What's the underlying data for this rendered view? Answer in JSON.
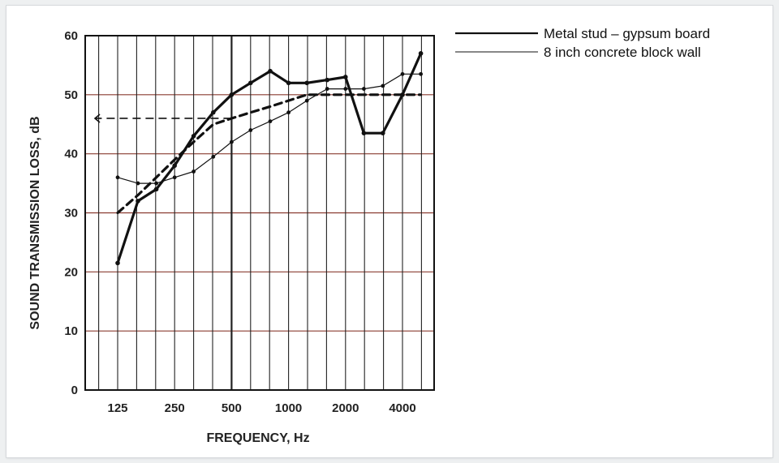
{
  "chart_data": {
    "type": "line",
    "xlabel": "FREQUENCY, Hz",
    "ylabel": "SOUND TRANSMISSION LOSS, dB",
    "x_tick_labels": [
      "125",
      "250",
      "500",
      "1000",
      "2000",
      "4000"
    ],
    "y_ticks": [
      0,
      10,
      20,
      30,
      40,
      50,
      60
    ],
    "ylim": [
      0,
      60
    ],
    "x_scale": "log (one-third octave bands)",
    "grid": true,
    "legend_position": "top-right, outside plot",
    "x": [
      125,
      160,
      200,
      250,
      315,
      400,
      500,
      630,
      800,
      1000,
      1250,
      1600,
      2000,
      2500,
      3150,
      4000,
      5000
    ],
    "series": [
      {
        "name": "Metal stud – gypsum board",
        "style": "thick solid with markers",
        "color": "#111111",
        "values": [
          21.5,
          32,
          34,
          38,
          43,
          47,
          50,
          52,
          54,
          52,
          52,
          52.5,
          53,
          43.5,
          43.5,
          50,
          57
        ]
      },
      {
        "name": "8 inch concrete block wall",
        "style": "thin solid with markers",
        "color": "#111111",
        "values": [
          36,
          35,
          35,
          36,
          37,
          39.5,
          42,
          44,
          45.5,
          47,
          49,
          51,
          51,
          51,
          51.5,
          53.5,
          53.5
        ]
      },
      {
        "style": "thick dashed reference contour",
        "color": "#111111",
        "values": [
          30,
          33,
          36,
          39,
          42,
          45,
          46,
          47,
          48,
          49,
          50,
          50,
          50,
          50,
          50,
          50,
          50
        ]
      }
    ],
    "annotations": [
      {
        "type": "dashed-arrow",
        "y": 46,
        "from_x": 500,
        "direction": "left"
      }
    ],
    "legend": [
      {
        "label": "Metal stud – gypsum board",
        "line": "thick"
      },
      {
        "label": "8 inch concrete block wall",
        "line": "thin"
      }
    ],
    "colors": {
      "grid_horizontal": "#8a3b30",
      "grid_vertical": "#222222",
      "lines": "#111111"
    }
  }
}
